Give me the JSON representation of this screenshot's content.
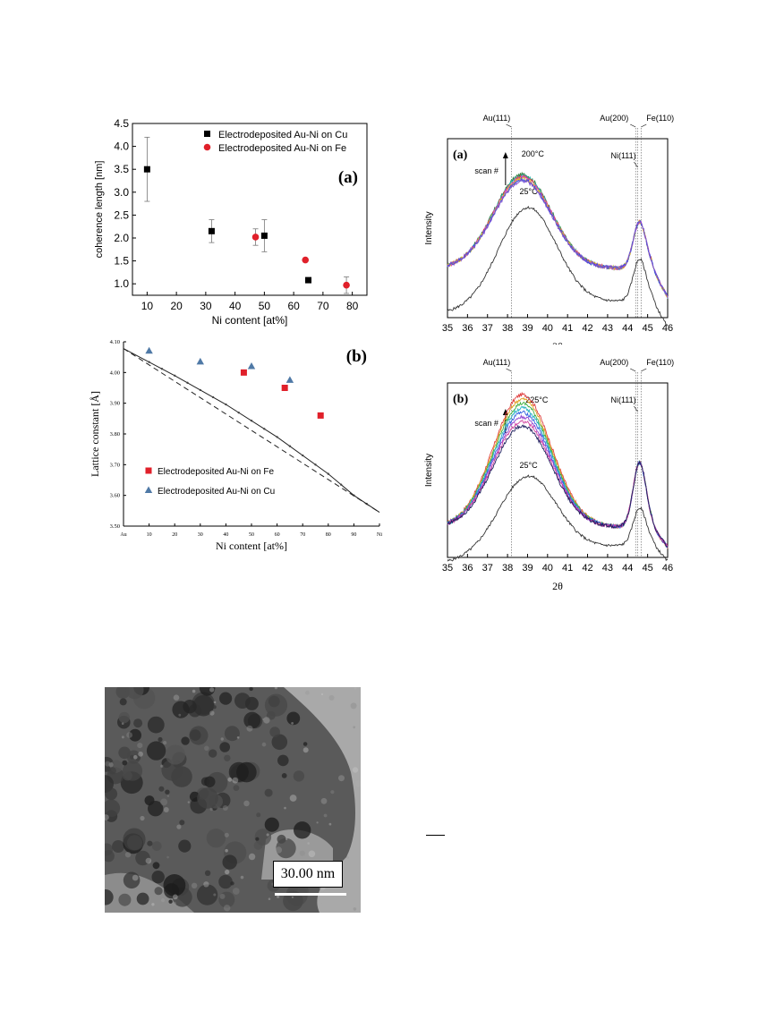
{
  "chart_data": [
    {
      "id": "coherence",
      "type": "scatter",
      "panel_label": "(a)",
      "xlabel": "Ni content [at%]",
      "ylabel": "coherence length [nm]",
      "xlim": [
        5,
        85
      ],
      "ylim": [
        0.75,
        4.5
      ],
      "xticks": [
        10,
        20,
        30,
        40,
        50,
        60,
        70,
        80
      ],
      "yticks": [
        1.0,
        1.5,
        2.0,
        2.5,
        3.0,
        3.5,
        4.0,
        4.5
      ],
      "legend": "top-right",
      "series": [
        {
          "name": "Electrodeposited Au-Ni on Cu",
          "color": "#000000",
          "marker": "square",
          "x": [
            10,
            32,
            50,
            65
          ],
          "y": [
            3.5,
            2.15,
            2.05,
            1.08
          ],
          "err": [
            0.7,
            0.25,
            0.35,
            0
          ]
        },
        {
          "name": "Electrodeposited Au-Ni on Fe",
          "color": "#e0202a",
          "marker": "circle",
          "x": [
            47,
            64,
            78
          ],
          "y": [
            2.02,
            1.52,
            0.97
          ],
          "err": [
            0.18,
            0,
            0.18
          ]
        }
      ]
    },
    {
      "id": "lattice",
      "type": "scatter",
      "panel_label": "(b)",
      "xlabel": "Ni content [at%]",
      "ylabel": "Lattice constant [Å]",
      "xlim": [
        0,
        100
      ],
      "ylim": [
        3.5,
        4.1
      ],
      "xticks": [
        "Au",
        "10",
        "20",
        "30",
        "40",
        "50",
        "60",
        "70",
        "80",
        "90",
        "Ni"
      ],
      "yticks": [
        "3.50",
        "3.60",
        "3.70",
        "3.80",
        "3.90",
        "4.00",
        "4.10"
      ],
      "legend": "bottom-left",
      "series": [
        {
          "name": "Electrodeposited Au-Ni on Fe",
          "color": "#e0202a",
          "marker": "square",
          "x": [
            47,
            63,
            77
          ],
          "y": [
            4.0,
            3.95,
            3.86
          ]
        },
        {
          "name": "Electrodeposited Au-Ni on Cu",
          "color": "#4f79a6",
          "marker": "triangle",
          "x": [
            10,
            30,
            50,
            65
          ],
          "y": [
            4.07,
            4.035,
            4.02,
            3.975
          ]
        }
      ],
      "lines": [
        {
          "style": "solid",
          "x": [
            0,
            20,
            40,
            60,
            80,
            90,
            100
          ],
          "y": [
            4.078,
            3.99,
            3.896,
            3.79,
            3.67,
            3.6,
            3.545
          ]
        },
        {
          "style": "dashed",
          "x": [
            0,
            100
          ],
          "y": [
            4.078,
            3.545
          ]
        }
      ]
    },
    {
      "id": "xrd_a",
      "type": "line",
      "panel_label": "(a)",
      "xlabel": "2θ",
      "ylabel": "Intensity",
      "xlim": [
        35,
        46
      ],
      "xticks": [
        35,
        36,
        37,
        38,
        39,
        40,
        41,
        42,
        43,
        44,
        45,
        46
      ],
      "refs": [
        {
          "label": "Au(111)",
          "x": 38.2
        },
        {
          "label": "Au(200)",
          "x": 44.4
        },
        {
          "label": "Ni(111)",
          "x": 44.5
        },
        {
          "label": "Fe(110)",
          "x": 44.67
        }
      ],
      "top_temp": "200°C",
      "bottom_temp": "25°C",
      "arrow_label": "scan #"
    },
    {
      "id": "xrd_b",
      "type": "line",
      "panel_label": "(b)",
      "xlabel": "2θ",
      "ylabel": "Intensity",
      "xlim": [
        35,
        46
      ],
      "xticks": [
        35,
        36,
        37,
        38,
        39,
        40,
        41,
        42,
        43,
        44,
        45,
        46
      ],
      "refs": [
        {
          "label": "Au(111)",
          "x": 38.2
        },
        {
          "label": "Au(200)",
          "x": 44.4
        },
        {
          "label": "Ni(111)",
          "x": 44.5
        },
        {
          "label": "Fe(110)",
          "x": 44.67
        }
      ],
      "top_temp": "225°C",
      "bottom_temp": "25°C",
      "arrow_label": "scan #"
    }
  ],
  "tem": {
    "scale_text": "30.00 nm"
  }
}
